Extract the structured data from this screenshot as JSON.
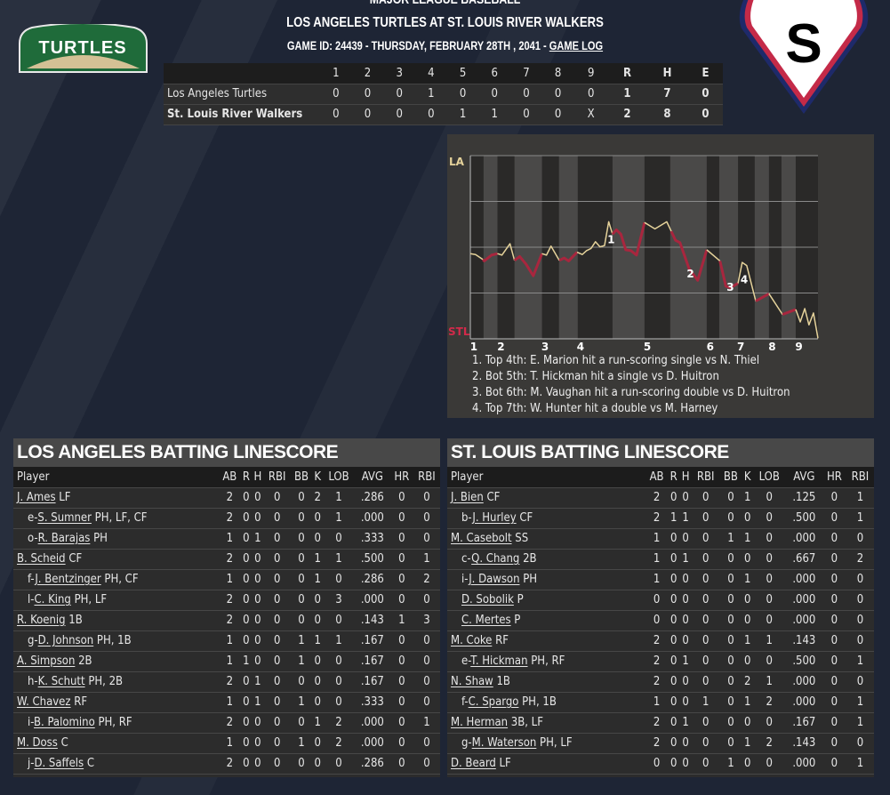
{
  "header": {
    "league": "MAJOR LEAGUE BASEBALL",
    "title": "LOS ANGELES TURTLES AT ST. LOUIS RIVER WALKERS",
    "subtitle": "GAME ID: 24439 - THURSDAY, FEBRUARY 28TH , 2041 - ",
    "game_log": "GAME LOG"
  },
  "logos": {
    "away": "TURTLES",
    "home": "S"
  },
  "linescore": {
    "columns": [
      "1",
      "2",
      "3",
      "4",
      "5",
      "6",
      "7",
      "8",
      "9",
      "R",
      "H",
      "E"
    ],
    "rows": [
      {
        "team": "Los Angeles Turtles",
        "bold": false,
        "values": [
          "0",
          "0",
          "0",
          "1",
          "0",
          "0",
          "0",
          "0",
          "0",
          "1",
          "7",
          "0"
        ]
      },
      {
        "team": "St. Louis River Walkers",
        "bold": true,
        "values": [
          "0",
          "0",
          "0",
          "0",
          "1",
          "1",
          "0",
          "0",
          "X",
          "2",
          "8",
          "0"
        ]
      }
    ]
  },
  "colors": {
    "away": "#e6d39b",
    "home": "#a8263e",
    "panel": "#2c2c2c",
    "background": "#1e2535"
  },
  "chart_data": {
    "type": "line",
    "top_label": "LA",
    "bottom_label": "STL",
    "ylim": [
      0,
      100
    ],
    "xlim": [
      0,
      100
    ],
    "inning_ticks": [
      {
        "label": "1",
        "x": 1
      },
      {
        "label": "2",
        "x": 8.8
      },
      {
        "label": "3",
        "x": 21.5
      },
      {
        "label": "4",
        "x": 31.7
      },
      {
        "label": "5",
        "x": 50.9
      },
      {
        "label": "6",
        "x": 69
      },
      {
        "label": "7",
        "x": 77.8
      },
      {
        "label": "8",
        "x": 86.8
      },
      {
        "label": "9",
        "x": 94.5
      }
    ],
    "shaded_bands": [
      [
        3.8,
        7.8
      ],
      [
        12.7,
        20.6
      ],
      [
        25.5,
        30.9
      ],
      [
        40.9,
        50.1
      ],
      [
        57.5,
        68
      ],
      [
        71.6,
        77
      ],
      [
        81.8,
        85.9
      ],
      [
        89.5,
        93.6
      ]
    ],
    "segments": [
      {
        "team": "away",
        "points": [
          [
            0,
            46.5
          ],
          [
            1.5,
            46
          ],
          [
            3.6,
            43.3
          ]
        ]
      },
      {
        "team": "home",
        "points": [
          [
            3.6,
            43.3
          ],
          [
            4,
            42.5
          ],
          [
            6.1,
            45.7
          ],
          [
            7.8,
            46.5
          ]
        ]
      },
      {
        "team": "away",
        "points": [
          [
            7.8,
            46.5
          ],
          [
            9.1,
            45.7
          ],
          [
            11.4,
            51.9
          ],
          [
            12.7,
            42.8
          ]
        ]
      },
      {
        "team": "home",
        "points": [
          [
            12.7,
            42.8
          ],
          [
            14.2,
            44.9
          ],
          [
            16,
            40.8
          ],
          [
            18.1,
            34.4
          ],
          [
            20.6,
            46.5
          ]
        ]
      },
      {
        "team": "away",
        "points": [
          [
            20.6,
            46.5
          ],
          [
            21.9,
            45.7
          ],
          [
            23.2,
            50.6
          ],
          [
            25.6,
            42.8
          ]
        ]
      },
      {
        "team": "home",
        "points": [
          [
            25.6,
            42.8
          ],
          [
            27,
            44.1
          ],
          [
            28.3,
            42.5
          ],
          [
            30.7,
            47.3
          ]
        ]
      },
      {
        "team": "away",
        "points": [
          [
            30.7,
            47.3
          ],
          [
            32.2,
            46
          ],
          [
            33.4,
            48.1
          ],
          [
            34.7,
            49.3
          ],
          [
            36,
            53
          ],
          [
            37.3,
            50.2
          ],
          [
            38.6,
            50.9
          ],
          [
            39.8,
            63.9
          ],
          [
            40.9,
            57.1
          ]
        ]
      },
      {
        "team": "home",
        "points": [
          [
            40.9,
            57.1
          ],
          [
            42,
            59.5
          ],
          [
            43.3,
            57.1
          ],
          [
            44.7,
            48.6
          ],
          [
            46.2,
            48.1
          ],
          [
            47.8,
            45.7
          ],
          [
            50.1,
            63.5
          ]
        ]
      },
      {
        "team": "away",
        "points": [
          [
            50.1,
            63.5
          ],
          [
            53.1,
            60
          ],
          [
            56.5,
            63.9
          ],
          [
            57.8,
            58.7
          ]
        ]
      },
      {
        "team": "home",
        "points": [
          [
            57.8,
            58.7
          ],
          [
            59,
            53.8
          ],
          [
            60.3,
            52.5
          ],
          [
            62.9,
            38.4
          ],
          [
            65.4,
            31.9
          ],
          [
            68,
            48.6
          ]
        ]
      },
      {
        "team": "away",
        "points": [
          [
            68,
            48.6
          ],
          [
            71.8,
            42.5
          ]
        ]
      },
      {
        "team": "home",
        "points": [
          [
            71.8,
            42.5
          ],
          [
            73.5,
            28.7
          ],
          [
            74.8,
            27.9
          ],
          [
            77,
            30.3
          ]
        ]
      },
      {
        "team": "away",
        "points": [
          [
            77,
            30.3
          ],
          [
            78.2,
            41.7
          ],
          [
            79.5,
            40
          ],
          [
            82.1,
            20.6
          ]
        ]
      },
      {
        "team": "home",
        "points": [
          [
            82.1,
            20.6
          ],
          [
            85.9,
            24.6
          ]
        ]
      },
      {
        "team": "away",
        "points": [
          [
            85.9,
            24.6
          ],
          [
            89.8,
            13.3
          ]
        ]
      },
      {
        "team": "home",
        "points": [
          [
            89.8,
            13.3
          ],
          [
            93.6,
            16
          ]
        ]
      },
      {
        "team": "away",
        "points": [
          [
            93.6,
            16
          ],
          [
            94.9,
            9.2
          ],
          [
            96.2,
            16.5
          ],
          [
            97.4,
            7.6
          ],
          [
            98.7,
            14.1
          ],
          [
            100,
            0.3
          ]
        ]
      }
    ],
    "markers": [
      {
        "label": "1",
        "x": 40.5,
        "y": 54.6
      },
      {
        "label": "2",
        "x": 63.3,
        "y": 36
      },
      {
        "label": "3",
        "x": 74.8,
        "y": 28.7
      },
      {
        "label": "4",
        "x": 78.8,
        "y": 32.7
      }
    ],
    "notes": [
      "1. Top 4th: E. Marion hit a run-scoring single vs N. Thiel",
      "2. Bot 5th: T. Hickman hit a single vs D. Huitron",
      "3. Bot 6th: M. Vaughan hit a run-scoring double vs D. Huitron",
      "4. Top 7th: W. Hunter hit a double vs M. Harney"
    ]
  },
  "batting": {
    "columns": [
      "Player",
      "AB",
      "R",
      "H",
      "RBI",
      "BB",
      "K",
      "LOB",
      "AVG",
      "HR",
      "RBI"
    ],
    "away": {
      "title": "LOS ANGELES BATTING LINESCORE",
      "rows": [
        {
          "prefix": "",
          "name": "J. Ames",
          "pos": "LF",
          "sub": false,
          "stats": [
            "2",
            "0",
            "0",
            "0",
            "0",
            "2",
            "1",
            ".286",
            "0",
            "0"
          ]
        },
        {
          "prefix": "e-",
          "name": "S. Sumner",
          "pos": "PH, LF, CF",
          "sub": true,
          "stats": [
            "2",
            "0",
            "0",
            "0",
            "0",
            "0",
            "1",
            ".000",
            "0",
            "0"
          ]
        },
        {
          "prefix": "o-",
          "name": "R. Barajas",
          "pos": "PH",
          "sub": true,
          "stats": [
            "1",
            "0",
            "1",
            "0",
            "0",
            "0",
            "0",
            ".333",
            "0",
            "0"
          ]
        },
        {
          "prefix": "",
          "name": "B. Scheid",
          "pos": "CF",
          "sub": false,
          "stats": [
            "2",
            "0",
            "0",
            "0",
            "0",
            "1",
            "1",
            ".500",
            "0",
            "1"
          ]
        },
        {
          "prefix": "f-",
          "name": "J. Bentzinger",
          "pos": "PH, CF",
          "sub": true,
          "stats": [
            "1",
            "0",
            "0",
            "0",
            "0",
            "1",
            "0",
            ".286",
            "0",
            "2"
          ]
        },
        {
          "prefix": "l-",
          "name": "C. King",
          "pos": "PH, LF",
          "sub": true,
          "stats": [
            "2",
            "0",
            "0",
            "0",
            "0",
            "0",
            "3",
            ".000",
            "0",
            "0"
          ]
        },
        {
          "prefix": "",
          "name": "R. Koenig",
          "pos": "1B",
          "sub": false,
          "stats": [
            "2",
            "0",
            "0",
            "0",
            "0",
            "0",
            "0",
            ".143",
            "1",
            "3"
          ]
        },
        {
          "prefix": "g-",
          "name": "D. Johnson",
          "pos": "PH, 1B",
          "sub": true,
          "stats": [
            "1",
            "0",
            "0",
            "0",
            "1",
            "1",
            "1",
            ".167",
            "0",
            "0"
          ]
        },
        {
          "prefix": "",
          "name": "A. Simpson",
          "pos": "2B",
          "sub": false,
          "stats": [
            "1",
            "1",
            "0",
            "0",
            "1",
            "0",
            "0",
            ".167",
            "0",
            "0"
          ]
        },
        {
          "prefix": "h-",
          "name": "K. Schutt",
          "pos": "PH, 2B",
          "sub": true,
          "stats": [
            "2",
            "0",
            "1",
            "0",
            "0",
            "0",
            "0",
            ".167",
            "0",
            "0"
          ]
        },
        {
          "prefix": "",
          "name": "W. Chavez",
          "pos": "RF",
          "sub": false,
          "stats": [
            "1",
            "0",
            "1",
            "0",
            "1",
            "0",
            "0",
            ".333",
            "0",
            "0"
          ]
        },
        {
          "prefix": "i-",
          "name": "B. Palomino",
          "pos": "PH, RF",
          "sub": true,
          "stats": [
            "2",
            "0",
            "0",
            "0",
            "0",
            "1",
            "2",
            ".000",
            "0",
            "1"
          ]
        },
        {
          "prefix": "",
          "name": "M. Doss",
          "pos": "C",
          "sub": false,
          "stats": [
            "1",
            "0",
            "0",
            "0",
            "1",
            "0",
            "2",
            ".000",
            "0",
            "0"
          ]
        },
        {
          "prefix": "j-",
          "name": "D. Saffels",
          "pos": "C",
          "sub": true,
          "stats": [
            "2",
            "0",
            "0",
            "0",
            "0",
            "0",
            "0",
            ".286",
            "0",
            "0"
          ]
        }
      ]
    },
    "home": {
      "title": "ST. LOUIS BATTING LINESCORE",
      "rows": [
        {
          "prefix": "",
          "name": "J. Bien",
          "pos": "CF",
          "sub": false,
          "stats": [
            "2",
            "0",
            "0",
            "0",
            "0",
            "1",
            "0",
            ".125",
            "0",
            "1"
          ]
        },
        {
          "prefix": "b-",
          "name": "J. Hurley",
          "pos": "CF",
          "sub": true,
          "stats": [
            "2",
            "1",
            "1",
            "0",
            "0",
            "0",
            "0",
            ".500",
            "0",
            "1"
          ]
        },
        {
          "prefix": "",
          "name": "M. Casebolt",
          "pos": "SS",
          "sub": false,
          "stats": [
            "1",
            "0",
            "0",
            "0",
            "1",
            "1",
            "0",
            ".000",
            "0",
            "0"
          ]
        },
        {
          "prefix": "c-",
          "name": "Q. Chang",
          "pos": "2B",
          "sub": true,
          "stats": [
            "1",
            "0",
            "1",
            "0",
            "0",
            "0",
            "0",
            ".667",
            "0",
            "2"
          ]
        },
        {
          "prefix": "i-",
          "name": "J. Dawson",
          "pos": "PH",
          "sub": true,
          "stats": [
            "1",
            "0",
            "0",
            "0",
            "0",
            "1",
            "0",
            ".000",
            "0",
            "0"
          ]
        },
        {
          "prefix": "",
          "name": "D. Sobolik",
          "pos": "P",
          "sub": true,
          "stats": [
            "0",
            "0",
            "0",
            "0",
            "0",
            "0",
            "0",
            ".000",
            "0",
            "0"
          ]
        },
        {
          "prefix": "",
          "name": "C. Mertes",
          "pos": "P",
          "sub": true,
          "stats": [
            "0",
            "0",
            "0",
            "0",
            "0",
            "0",
            "0",
            ".000",
            "0",
            "0"
          ]
        },
        {
          "prefix": "",
          "name": "M. Coke",
          "pos": "RF",
          "sub": false,
          "stats": [
            "2",
            "0",
            "0",
            "0",
            "0",
            "1",
            "1",
            ".143",
            "0",
            "0"
          ]
        },
        {
          "prefix": "e-",
          "name": "T. Hickman",
          "pos": "PH, RF",
          "sub": true,
          "stats": [
            "2",
            "0",
            "1",
            "0",
            "0",
            "0",
            "0",
            ".500",
            "0",
            "1"
          ]
        },
        {
          "prefix": "",
          "name": "N. Shaw",
          "pos": "1B",
          "sub": false,
          "stats": [
            "2",
            "0",
            "0",
            "0",
            "0",
            "2",
            "1",
            ".000",
            "0",
            "0"
          ]
        },
        {
          "prefix": "f-",
          "name": "C. Spargo",
          "pos": "PH, 1B",
          "sub": true,
          "stats": [
            "1",
            "0",
            "0",
            "1",
            "0",
            "1",
            "2",
            ".000",
            "0",
            "1"
          ]
        },
        {
          "prefix": "",
          "name": "M. Herman",
          "pos": "3B, LF",
          "sub": false,
          "stats": [
            "2",
            "0",
            "1",
            "0",
            "0",
            "0",
            "0",
            ".167",
            "0",
            "1"
          ]
        },
        {
          "prefix": "g-",
          "name": "M. Waterson",
          "pos": "PH, LF",
          "sub": true,
          "stats": [
            "2",
            "0",
            "0",
            "0",
            "0",
            "1",
            "2",
            ".143",
            "0",
            "0"
          ]
        },
        {
          "prefix": "",
          "name": "D. Beard",
          "pos": "LF",
          "sub": false,
          "stats": [
            "0",
            "0",
            "0",
            "0",
            "1",
            "0",
            "0",
            ".000",
            "0",
            "1"
          ]
        }
      ]
    }
  }
}
